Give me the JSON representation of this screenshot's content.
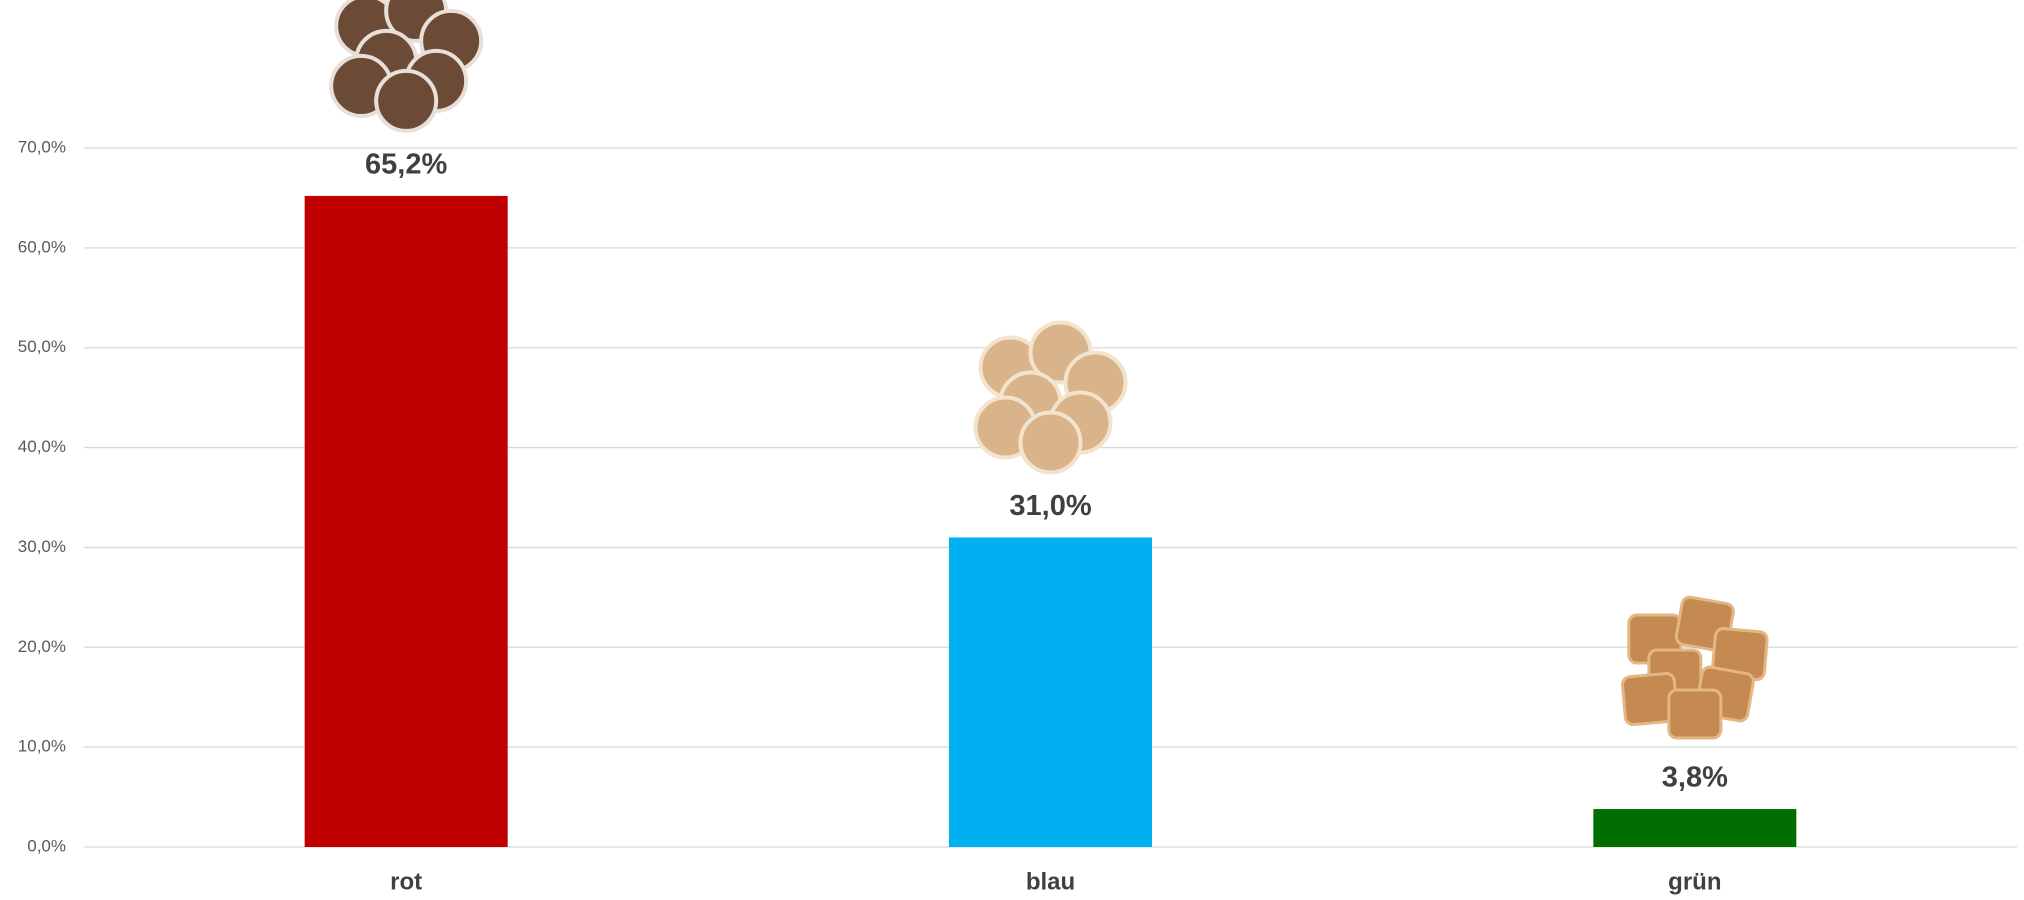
{
  "chart_data": {
    "type": "bar",
    "categories": [
      "rot",
      "blau",
      "grün"
    ],
    "values": [
      65.2,
      31.0,
      3.8
    ],
    "value_labels": [
      "65,2%",
      "31,0%",
      "3,8%"
    ],
    "colors": [
      "#c00000",
      "#00b0f0",
      "#006e00"
    ],
    "ylim": [
      0,
      70
    ],
    "yticks": [
      {
        "value": 0,
        "label": "0,0%"
      },
      {
        "value": 10,
        "label": "10,0%"
      },
      {
        "value": 20,
        "label": "20,0%"
      },
      {
        "value": 30,
        "label": "30,0%"
      },
      {
        "value": 40,
        "label": "40,0%"
      },
      {
        "value": 50,
        "label": "50,0%"
      },
      {
        "value": 60,
        "label": "60,0%"
      },
      {
        "value": 70,
        "label": "70,0%"
      }
    ],
    "grid": true
  }
}
